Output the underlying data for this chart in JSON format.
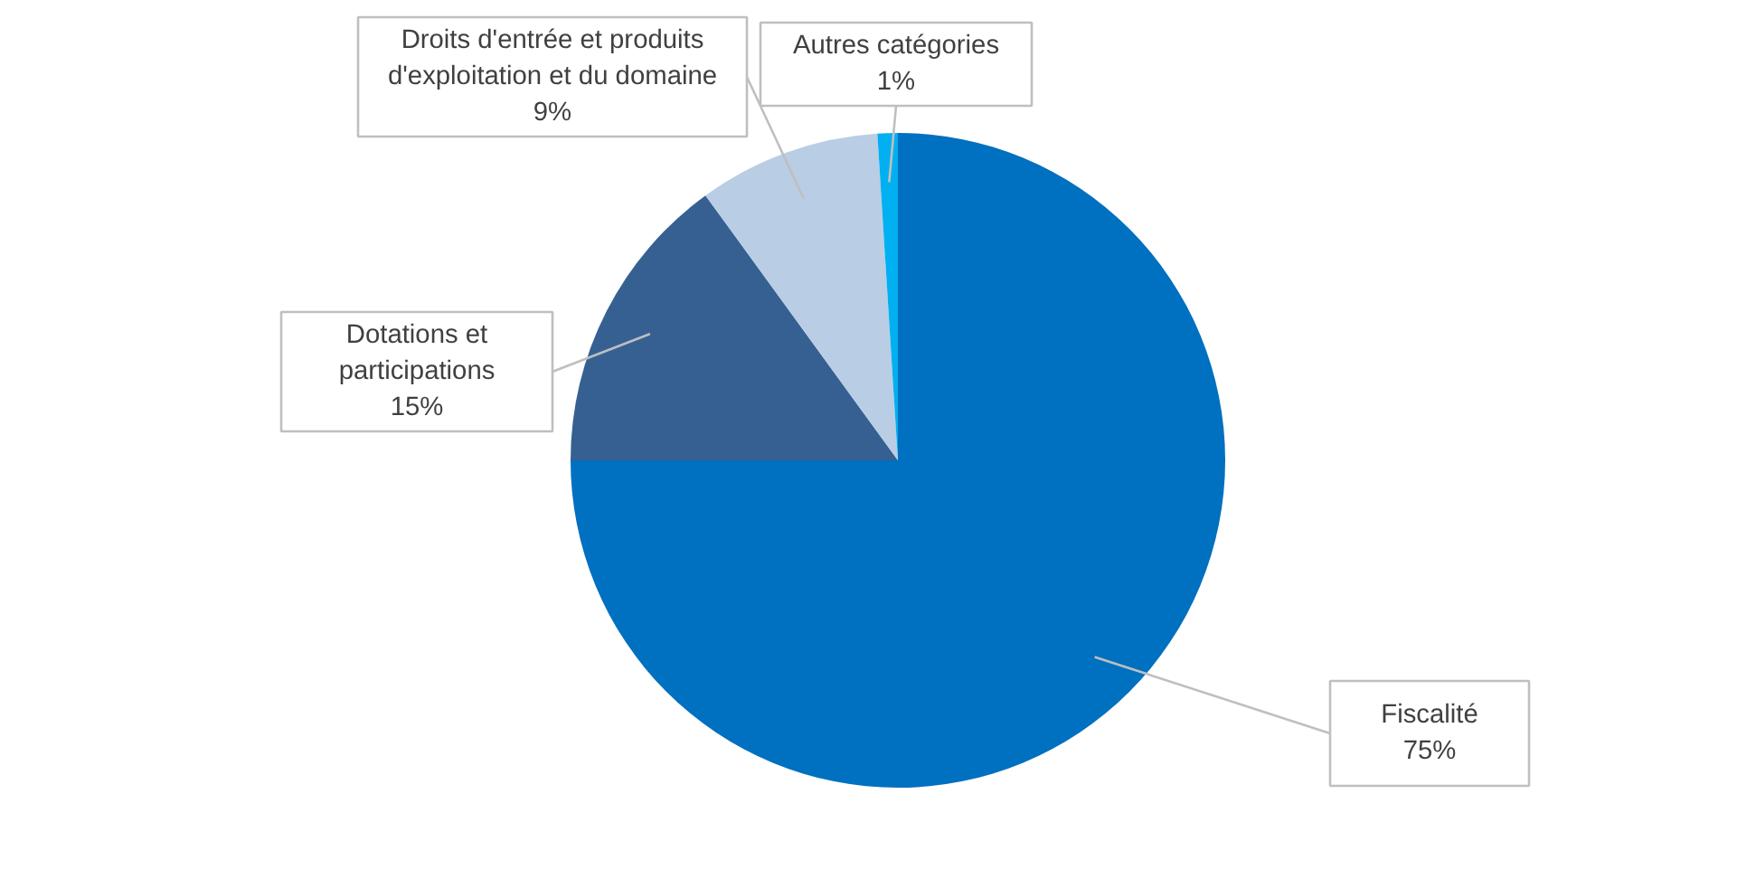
{
  "chart_data": {
    "type": "pie",
    "categories": [
      "Fiscalité",
      "Dotations et participations",
      "Droits d'entrée et produits d'exploitation et du domaine",
      "Autres catégories"
    ],
    "values": [
      75,
      15,
      9,
      1
    ],
    "colors": [
      "#0070c0",
      "#376092",
      "#b9cde5",
      "#00b0f0"
    ],
    "value_labels": [
      "75%",
      "15%",
      "9%",
      "1%"
    ]
  }
}
